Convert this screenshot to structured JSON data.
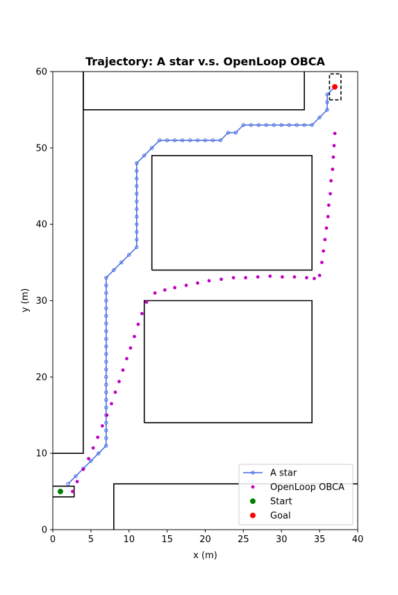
{
  "chart_data": {
    "type": "line",
    "title": "Trajectory: A star v.s. OpenLoop OBCA",
    "xlabel": "x (m)",
    "ylabel": "y (m)",
    "xlim": [
      0,
      40
    ],
    "ylim": [
      0,
      60
    ],
    "xticks": [
      "0",
      "5",
      "10",
      "15",
      "20",
      "25",
      "30",
      "35",
      "40"
    ],
    "yticks": [
      "0",
      "10",
      "20",
      "30",
      "40",
      "50",
      "60"
    ],
    "grid": false,
    "legend": {
      "placement": "lower-right",
      "entries": [
        "A star",
        "OpenLoop OBCA",
        "Start",
        "Goal"
      ]
    },
    "colors": {
      "astar": "#4169e1",
      "obca": "#c000c0",
      "start": "#008000",
      "goal": "#ff0000",
      "obstacle": "#000000"
    },
    "obstacles": [
      [
        [
          4,
          60
        ],
        [
          4,
          10
        ],
        [
          0,
          10
        ]
      ],
      [
        [
          4,
          60
        ],
        [
          4,
          55
        ],
        [
          33,
          55
        ],
        [
          33,
          60
        ]
      ],
      [
        [
          13,
          34
        ],
        [
          34,
          34
        ],
        [
          34,
          49
        ],
        [
          13,
          49
        ],
        [
          13,
          34
        ]
      ],
      [
        [
          12,
          14
        ],
        [
          34,
          14
        ],
        [
          34,
          30
        ],
        [
          12,
          30
        ],
        [
          12,
          14
        ]
      ],
      [
        [
          8,
          0
        ],
        [
          8,
          6
        ],
        [
          40,
          6
        ]
      ],
      [
        [
          0,
          5.7
        ],
        [
          2.8,
          5.7
        ],
        [
          2.8,
          4.3
        ],
        [
          0,
          4.3
        ]
      ]
    ],
    "goal_box": [
      [
        36.3,
        56.3
      ],
      [
        37.8,
        56.3
      ],
      [
        37.8,
        59.7
      ],
      [
        36.3,
        59.7
      ],
      [
        36.3,
        56.3
      ]
    ],
    "series": [
      {
        "name": "A star",
        "x": [
          2,
          3,
          4,
          5,
          6,
          7,
          7,
          7,
          7,
          7,
          7,
          7,
          7,
          7,
          7,
          7,
          7,
          7,
          7,
          7,
          7,
          7,
          7,
          7,
          7,
          7,
          7,
          7,
          8,
          9,
          10,
          11,
          11,
          11,
          11,
          11,
          11,
          11,
          11,
          11,
          11,
          11,
          11,
          12,
          13,
          14,
          15,
          16,
          17,
          18,
          19,
          20,
          21,
          22,
          23,
          24,
          25,
          26,
          27,
          28,
          29,
          30,
          31,
          32,
          33,
          34,
          35,
          36,
          36,
          36,
          37
        ],
        "y": [
          6,
          7,
          8,
          9,
          10,
          11,
          12,
          13,
          14,
          15,
          16,
          17,
          18,
          19,
          20,
          21,
          22,
          23,
          24,
          25,
          26,
          27,
          28,
          29,
          30,
          31,
          32,
          33,
          34,
          35,
          36,
          37,
          38,
          39,
          40,
          41,
          42,
          43,
          44,
          45,
          46,
          47,
          48,
          49,
          50,
          51,
          51,
          51,
          51,
          51,
          51,
          51,
          51,
          51,
          52,
          52,
          53,
          53,
          53,
          53,
          53,
          53,
          53,
          53,
          53,
          53,
          54,
          55,
          56,
          57,
          58
        ]
      },
      {
        "name": "OpenLoop OBCA",
        "x": [
          2.6,
          3.2,
          4,
          4.7,
          5.3,
          5.9,
          6.5,
          7.1,
          7.7,
          8.2,
          8.7,
          9.2,
          9.7,
          10.2,
          10.7,
          11.2,
          11.7,
          12.3,
          13.4,
          14.7,
          16,
          17.5,
          19,
          20.5,
          22.1,
          23.7,
          25.3,
          26.9,
          28.5,
          30.1,
          31.7,
          33.3,
          34.3,
          35,
          35.3,
          35.5,
          35.7,
          35.9,
          36.1,
          36.2,
          36.4,
          36.5,
          36.7,
          36.8,
          36.9,
          37
        ],
        "y": [
          5,
          6.3,
          7.9,
          9.3,
          10.7,
          12.1,
          13.6,
          15,
          16.5,
          18,
          19.4,
          20.9,
          22.4,
          23.8,
          25.3,
          26.9,
          28.3,
          29.8,
          31,
          31.4,
          31.7,
          32,
          32.3,
          32.6,
          32.8,
          33,
          33,
          33.1,
          33.2,
          33.1,
          33.1,
          33,
          32.9,
          33.3,
          35,
          36.5,
          38,
          39.5,
          41,
          42.5,
          44,
          45.7,
          47.2,
          48.8,
          50.3,
          51.9
        ]
      },
      {
        "name": "Start",
        "x": [
          1
        ],
        "y": [
          5
        ]
      },
      {
        "name": "Goal",
        "x": [
          37
        ],
        "y": [
          58
        ]
      }
    ]
  }
}
